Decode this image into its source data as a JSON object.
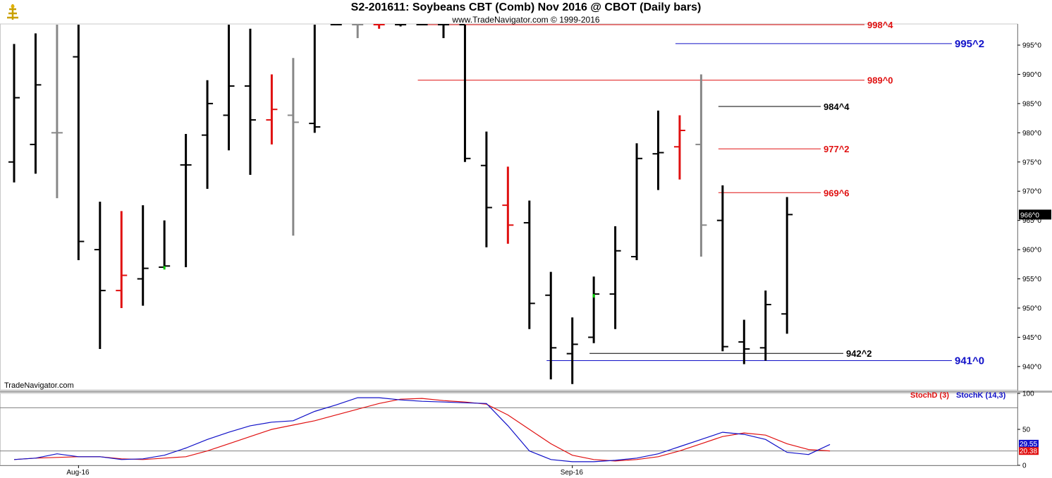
{
  "header": {
    "title": "S2-201611:  Soybeans CBT (Comb) Nov 2016 @ CBOT  (Daily bars)",
    "subtitle": "www.TradeNavigator.com © 1999-2016"
  },
  "footer": {
    "brand": "TradeNavigator.com"
  },
  "colors": {
    "up": "#000000",
    "down": "#e01010",
    "neutral": "#888888",
    "blue": "#1010c8",
    "red": "#e01010",
    "green": "#00cc00"
  },
  "icons": {
    "logo": "trade-navigator-logo-icon"
  },
  "chart_data": [
    {
      "type": "ohlc",
      "name": "price",
      "ylim": [
        936,
        998.5
      ],
      "yticks": [
        "995^0",
        "990^0",
        "985^0",
        "980^0",
        "975^0",
        "970^0",
        "965^0",
        "960^0",
        "955^0",
        "950^0",
        "945^0",
        "940^0"
      ],
      "ytick_values": [
        995,
        990,
        985,
        980,
        975,
        970,
        965,
        960,
        955,
        950,
        945,
        940
      ],
      "last_price": "966^0",
      "xticks": [
        {
          "label": "Aug-16",
          "index": 3
        },
        {
          "label": "Sep-16",
          "index": 26
        }
      ],
      "bars": [
        {
          "o": 975,
          "h": 995.2,
          "l": 971.5,
          "c": 986,
          "color": "up"
        },
        {
          "o": 978,
          "h": 997,
          "l": 973,
          "c": 988.2,
          "color": "up"
        },
        {
          "o": 980,
          "h": 999,
          "l": 968.8,
          "c": 980,
          "color": "neutral"
        },
        {
          "o": 993,
          "h": 999,
          "l": 958.2,
          "c": 961.4,
          "color": "up"
        },
        {
          "o": 960,
          "h": 968.2,
          "l": 943,
          "c": 953,
          "color": "up"
        },
        {
          "o": 953,
          "h": 966.6,
          "l": 950,
          "c": 955.6,
          "color": "down"
        },
        {
          "o": 955,
          "h": 967.6,
          "l": 950.4,
          "c": 956.8,
          "color": "up"
        },
        {
          "o": 957,
          "h": 965,
          "l": 957,
          "c": 957.2,
          "color": "up",
          "green": true
        },
        {
          "o": 974.5,
          "h": 979.8,
          "l": 957,
          "c": 974.5,
          "color": "up"
        },
        {
          "o": 979.6,
          "h": 989,
          "l": 970.4,
          "c": 985,
          "color": "up"
        },
        {
          "o": 983,
          "h": 999,
          "l": 977,
          "c": 988,
          "color": "up"
        },
        {
          "o": 988,
          "h": 997.8,
          "l": 972.8,
          "c": 982.2,
          "color": "up"
        },
        {
          "o": 982.2,
          "h": 990,
          "l": 978,
          "c": 984,
          "color": "down"
        },
        {
          "o": 983,
          "h": 992.8,
          "l": 962.4,
          "c": 981.8,
          "color": "neutral"
        },
        {
          "o": 981.6,
          "h": 999,
          "l": 980,
          "c": 981,
          "color": "up"
        },
        {
          "o": 999,
          "h": 999.5,
          "l": 999,
          "c": 999,
          "color": "up"
        },
        {
          "o": 999,
          "h": 999.5,
          "l": 996.2,
          "c": 999,
          "color": "neutral"
        },
        {
          "o": 999,
          "h": 999.5,
          "l": 997.8,
          "c": 999,
          "color": "down"
        },
        {
          "o": 999,
          "h": 999.5,
          "l": 998.2,
          "c": 999,
          "color": "up"
        },
        {
          "o": 999,
          "h": 999.5,
          "l": 999,
          "c": 999,
          "color": "up"
        },
        {
          "o": 999,
          "h": 999.5,
          "l": 996.2,
          "c": 999,
          "color": "up"
        },
        {
          "o": 999,
          "h": 999.5,
          "l": 975,
          "c": 975.6,
          "color": "up"
        },
        {
          "o": 974.4,
          "h": 980.2,
          "l": 960.4,
          "c": 967.2,
          "color": "up"
        },
        {
          "o": 967.6,
          "h": 974.2,
          "l": 961,
          "c": 964.2,
          "color": "down"
        },
        {
          "o": 964.6,
          "h": 968.4,
          "l": 946.4,
          "c": 950.8,
          "color": "up"
        },
        {
          "o": 952.2,
          "h": 956.2,
          "l": 937.8,
          "c": 943.2,
          "color": "up"
        },
        {
          "o": 942.2,
          "h": 948.4,
          "l": 937,
          "c": 943.8,
          "color": "up"
        },
        {
          "o": 945,
          "h": 955.4,
          "l": 944,
          "c": 952.4,
          "color": "up",
          "green": true
        },
        {
          "o": 952.4,
          "h": 964,
          "l": 946.4,
          "c": 959.8,
          "color": "up"
        },
        {
          "o": 958.8,
          "h": 978.2,
          "l": 958.2,
          "c": 975.6,
          "color": "up"
        },
        {
          "o": 976.4,
          "h": 983.8,
          "l": 970.2,
          "c": 976.6,
          "color": "up"
        },
        {
          "o": 977.6,
          "h": 983,
          "l": 972,
          "c": 980.4,
          "color": "down"
        },
        {
          "o": 978,
          "h": 990,
          "l": 958.8,
          "c": 964.2,
          "color": "neutral"
        },
        {
          "o": 965,
          "h": 971,
          "l": 942.6,
          "c": 943.4,
          "color": "up"
        },
        {
          "o": 944.2,
          "h": 948,
          "l": 940.4,
          "c": 943,
          "color": "up"
        },
        {
          "o": 943.2,
          "h": 953,
          "l": 941,
          "c": 950.6,
          "color": "up"
        },
        {
          "o": 949,
          "h": 969,
          "l": 945.6,
          "c": 966,
          "color": "up"
        }
      ],
      "levels": [
        {
          "label": "998^4",
          "value": 998.5,
          "color": "red",
          "x_from": 19
        },
        {
          "label": "995^2",
          "value": 995.25,
          "color": "blue",
          "x_from": 31
        },
        {
          "label": "989^0",
          "value": 989,
          "color": "red",
          "x_from": 19
        },
        {
          "label": "984^4",
          "value": 984.5,
          "color": "up",
          "x_from": 33
        },
        {
          "label": "977^2",
          "value": 977.25,
          "color": "red",
          "x_from": 33
        },
        {
          "label": "969^6",
          "value": 969.75,
          "color": "red",
          "x_from": 33
        },
        {
          "label": "942^2",
          "value": 942.25,
          "color": "up",
          "x_from": 27
        },
        {
          "label": "941^0",
          "value": 941,
          "color": "blue",
          "x_from": 25
        }
      ]
    },
    {
      "type": "line",
      "name": "stochastic",
      "ylim": [
        0,
        100
      ],
      "yticks": [
        "100",
        "50",
        "0"
      ],
      "ytick_values": [
        100,
        50,
        0
      ],
      "hlines": [
        80,
        20
      ],
      "x_start": 1,
      "series": [
        {
          "name": "StochD (3)",
          "color": "red",
          "values": [
            8,
            10,
            11,
            12,
            12,
            9,
            8,
            10,
            12,
            20,
            30,
            40,
            50,
            56,
            62,
            70,
            78,
            86,
            92,
            93,
            90,
            88,
            85,
            70,
            50,
            30,
            14,
            8,
            6,
            8,
            12,
            20,
            30,
            40,
            45,
            42,
            30,
            22,
            20
          ]
        },
        {
          "name": "StochK (14,3)",
          "color": "blue",
          "values": [
            8,
            10,
            16,
            12,
            12,
            8,
            9,
            14,
            24,
            36,
            46,
            55,
            60,
            62,
            75,
            84,
            94,
            94,
            91,
            89,
            88,
            87,
            86,
            55,
            20,
            8,
            5,
            5,
            7,
            10,
            16,
            26,
            36,
            46,
            43,
            36,
            18,
            15,
            29
          ]
        }
      ],
      "last_values": [
        "29.55",
        "20.38"
      ],
      "xticks": [
        {
          "label": "Aug-16",
          "index": 3
        },
        {
          "label": "Sep-16",
          "index": 26
        }
      ]
    }
  ]
}
